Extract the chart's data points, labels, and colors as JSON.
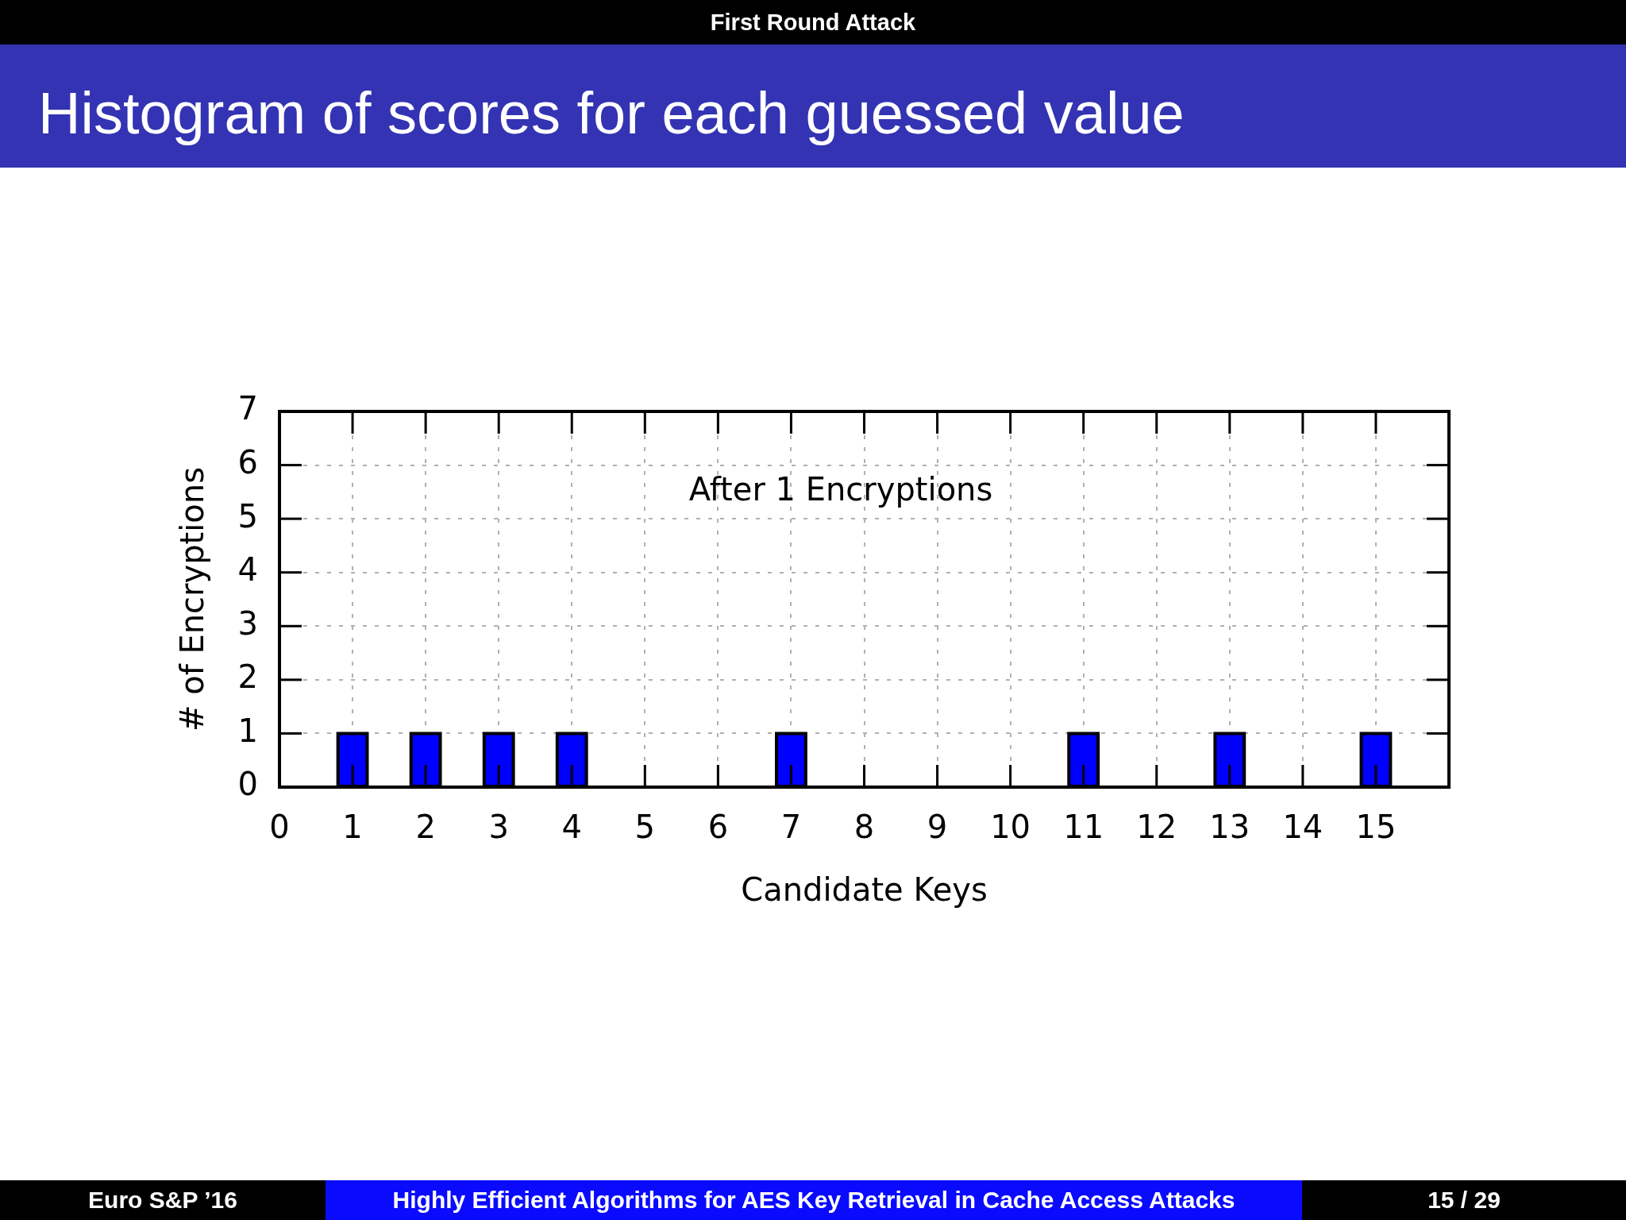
{
  "chart_data": {
    "type": "bar",
    "title": "Histogram of scores for each guessed value",
    "subtitle": "First Round Attack",
    "xlabel": "Candidate Keys",
    "ylabel": "# of Encryptions",
    "x": [
      0,
      1,
      2,
      3,
      4,
      5,
      6,
      7,
      8,
      9,
      10,
      11,
      12,
      13,
      14,
      15
    ],
    "values": [
      0,
      1,
      1,
      1,
      1,
      0,
      0,
      1,
      0,
      0,
      0,
      1,
      0,
      1,
      0,
      1
    ],
    "color": "#0000ff",
    "xlim": [
      0,
      16
    ],
    "ylim": [
      0,
      7
    ],
    "xticks": [
      0,
      1,
      2,
      3,
      4,
      5,
      6,
      7,
      8,
      9,
      10,
      11,
      12,
      13,
      14,
      15
    ],
    "yticks": [
      0,
      1,
      2,
      3,
      4,
      5,
      6,
      7
    ],
    "grid": true,
    "annotations": [
      "After 1 Encryptions",
      "Euro S&P ’16",
      "Highly Efficient Algorithms for AES Key Retrieval in Cache Access Attacks",
      "15 / 29"
    ]
  }
}
